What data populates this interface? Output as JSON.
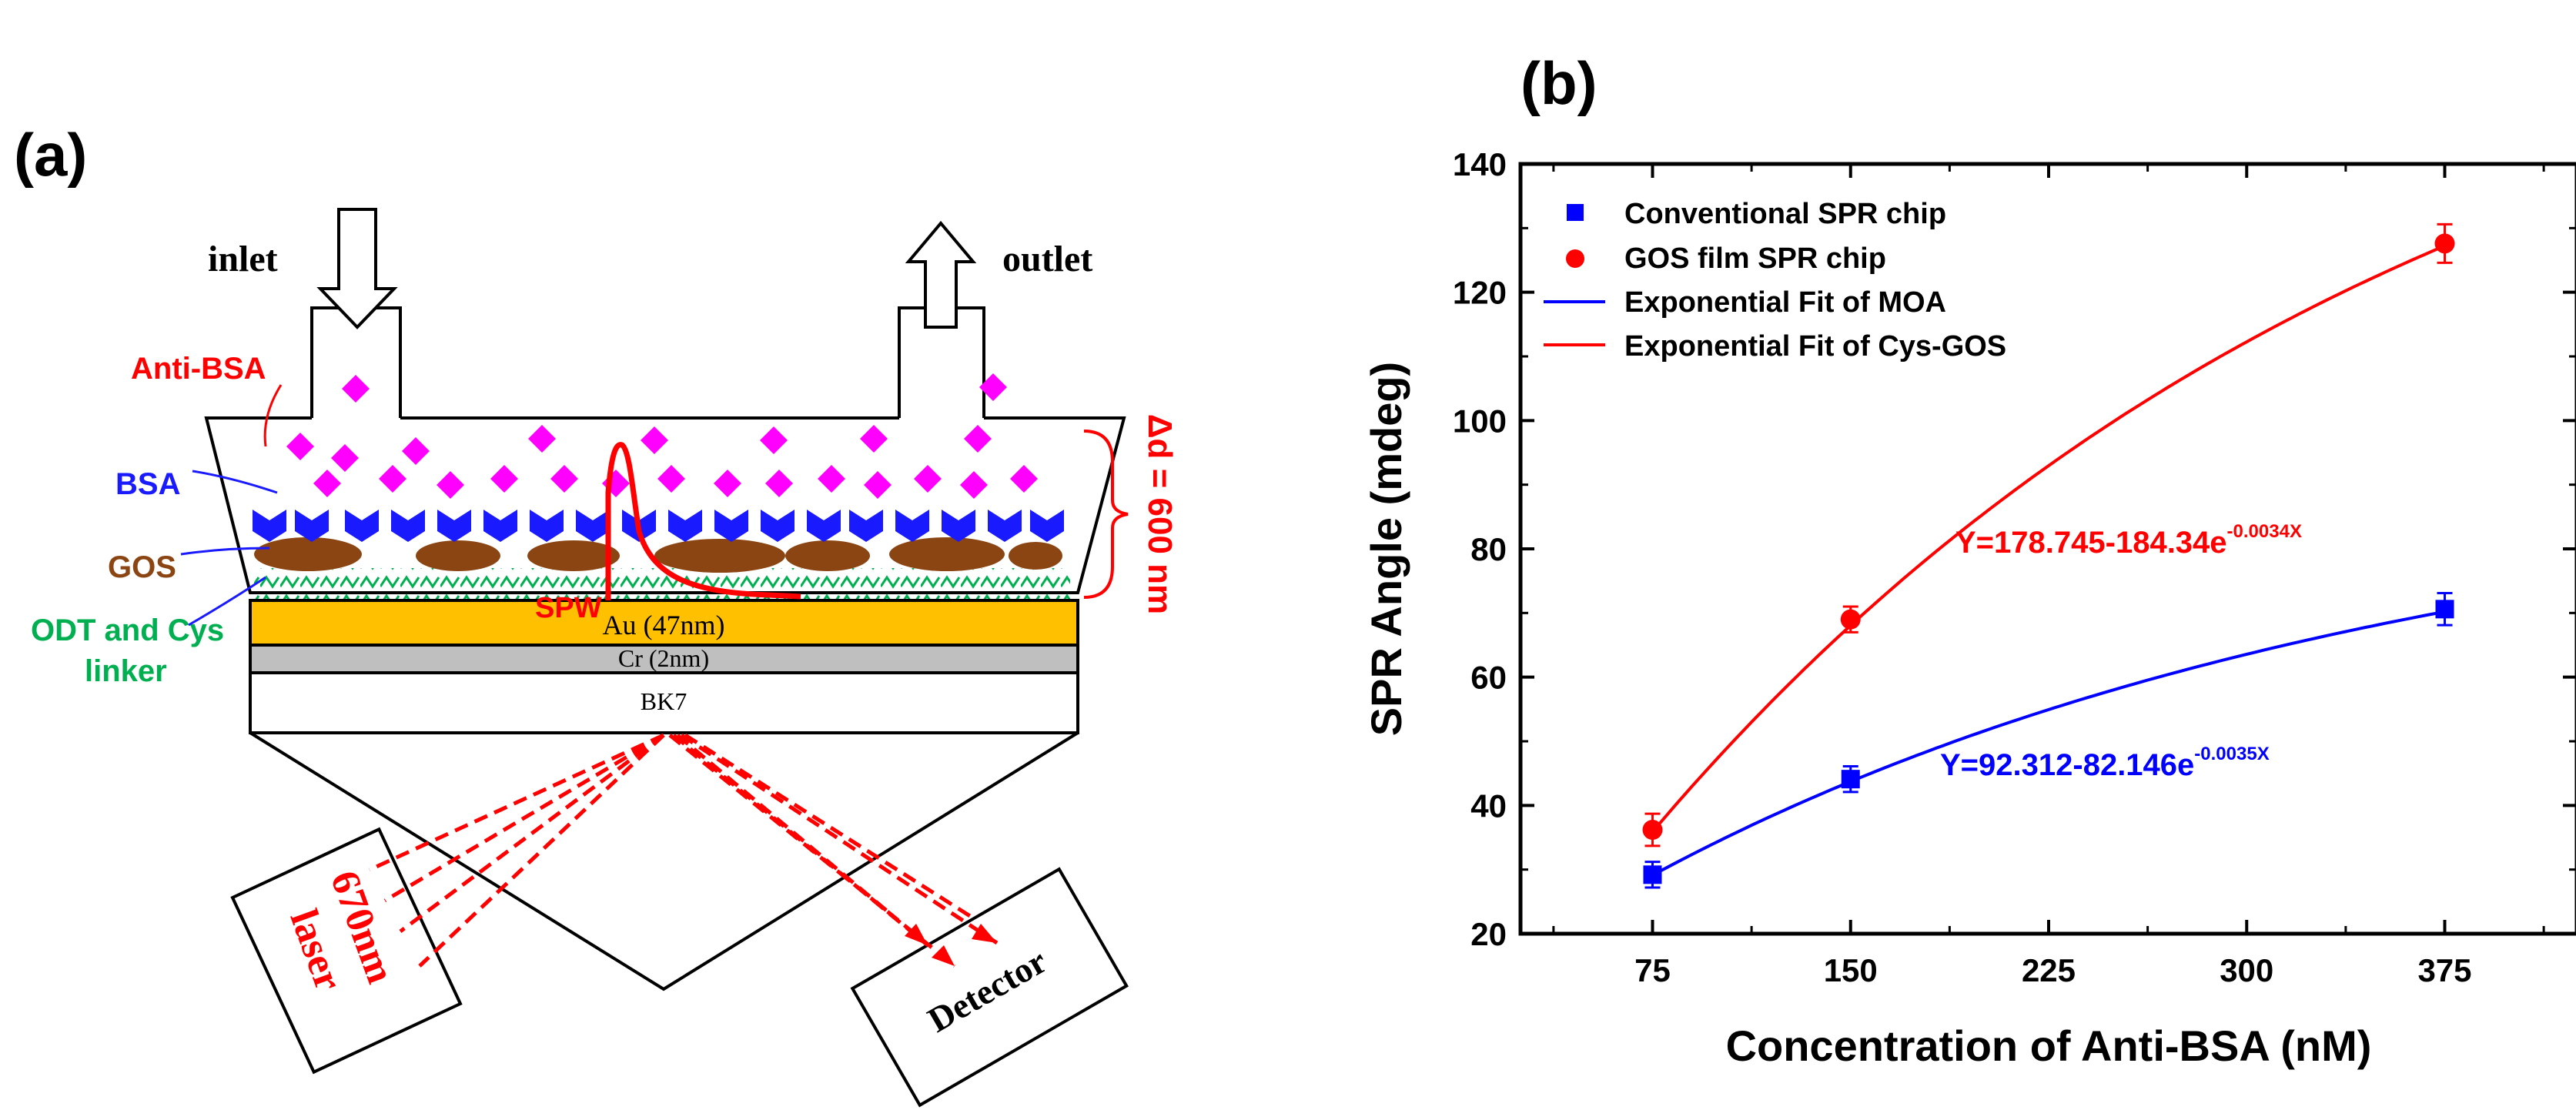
{
  "panel_a": {
    "label": "(a)",
    "inlet": "inlet",
    "outlet": "outlet",
    "anti_bsa": "Anti-BSA",
    "bsa": "BSA",
    "gos": "GOS",
    "odt_line1": "ODT and Cys",
    "odt_line2": "linker",
    "spw": "SPW",
    "delta_d": "Δd = 600 nm",
    "au": "Au (47nm)",
    "cr": "Cr (2nm)",
    "bk7": "BK7",
    "laser_line1": "670nm",
    "laser_line2": "laser",
    "detector": "Detector",
    "colors": {
      "anti_bsa": "#ff00ff",
      "bsa": "#1a1aff",
      "gos": "#8b4513",
      "odt": "#00b050",
      "red": "#ff0000",
      "gold": "#ffc000",
      "cr": "#bfbfbf"
    }
  },
  "panel_b": {
    "label": "(b)",
    "legend": [
      "Conventional SPR chip",
      "GOS film SPR chip",
      "Exponential Fit of MOA",
      "Exponential Fit of Cys-GOS"
    ],
    "eq_red_main": "Y=178.745-184.34e",
    "eq_red_exp": "-0.0034X",
    "eq_blue_main": "Y=92.312-82.146e",
    "eq_blue_exp": "-0.0035X"
  },
  "chart_data": {
    "type": "scatter",
    "title": "",
    "xlabel": "Concentration of Anti-BSA (nM)",
    "ylabel": "SPR Angle (mdeg)",
    "xlim": [
      25,
      425
    ],
    "ylim": [
      20,
      140
    ],
    "xticks": [
      75,
      150,
      225,
      300,
      375
    ],
    "yticks": [
      20,
      40,
      60,
      80,
      100,
      120,
      140
    ],
    "series": [
      {
        "name": "Conventional SPR chip",
        "marker": "square",
        "color": "#0000ff",
        "x": [
          75,
          150,
          375
        ],
        "y": [
          29.2,
          44.1,
          70.6
        ],
        "err": [
          2.0,
          2.0,
          2.5
        ]
      },
      {
        "name": "GOS film SPR chip",
        "marker": "circle",
        "color": "#ff0000",
        "x": [
          75,
          150,
          375
        ],
        "y": [
          36.2,
          69.0,
          127.6
        ],
        "err": [
          2.5,
          2.0,
          3.0
        ]
      }
    ],
    "fits": [
      {
        "name": "Exponential Fit of MOA",
        "color": "#0000ff",
        "a": 92.312,
        "b": 82.146,
        "k": 0.0035,
        "x_range": [
          75,
          375
        ]
      },
      {
        "name": "Exponential Fit of Cys-GOS",
        "color": "#ff0000",
        "a": 178.745,
        "b": 184.34,
        "k": 0.0034,
        "x_range": [
          75,
          375
        ]
      }
    ]
  }
}
